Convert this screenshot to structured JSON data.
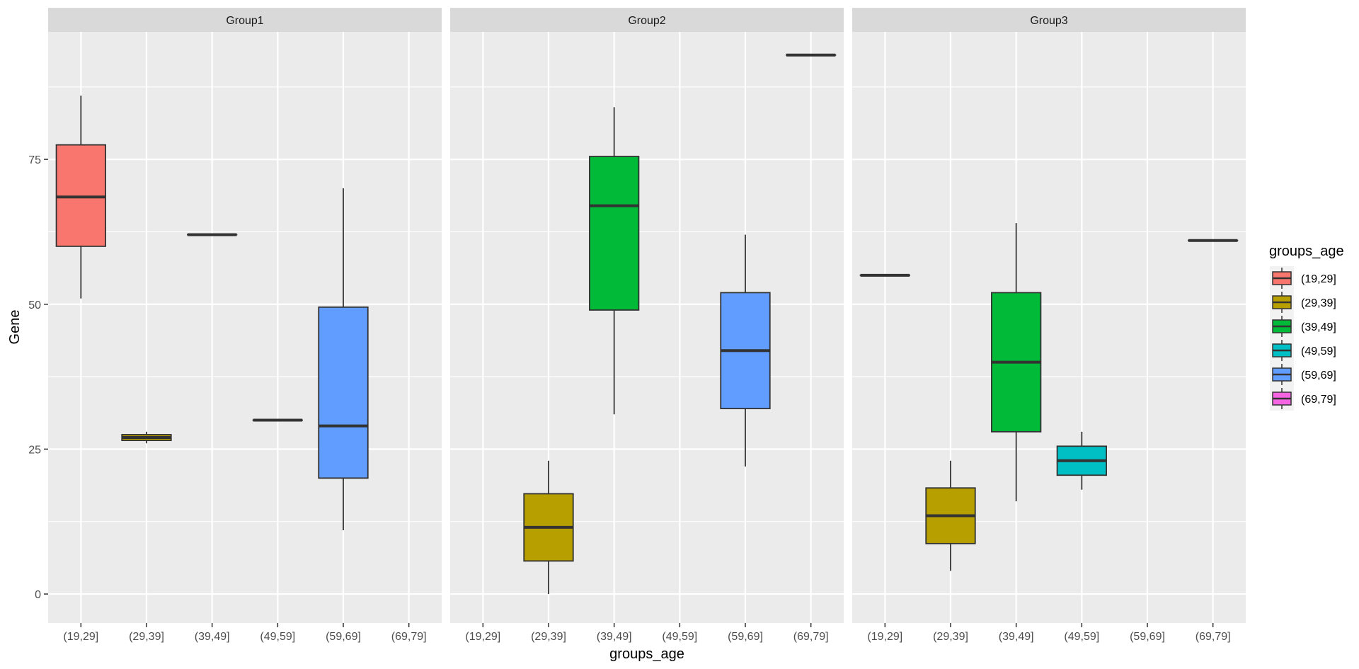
{
  "chart_data": {
    "type": "boxplot",
    "facets": [
      "Group1",
      "Group2",
      "Group3"
    ],
    "categories": [
      "(19,29]",
      "(29,39]",
      "(39,49]",
      "(49,59]",
      "(59,69]",
      "(69,79]"
    ],
    "xlabel": "groups_age",
    "ylabel": "Gene",
    "ylim": [
      -5,
      97
    ],
    "yticks": [
      0,
      25,
      50,
      75
    ],
    "legend": {
      "title": "groups_age",
      "position": "right",
      "entries": [
        {
          "label": "(19,29]",
          "color": "#F8766D"
        },
        {
          "label": "(29,39]",
          "color": "#B79F00"
        },
        {
          "label": "(39,49]",
          "color": "#00BA38"
        },
        {
          "label": "(49,59]",
          "color": "#00BFC4"
        },
        {
          "label": "(59,69]",
          "color": "#619CFF"
        },
        {
          "label": "(69,79]",
          "color": "#F564E3"
        }
      ]
    },
    "boxes": [
      {
        "facet": "Group1",
        "category": "(19,29]",
        "min": 51,
        "q1": 60,
        "median": 68.5,
        "q3": 77.5,
        "max": 86
      },
      {
        "facet": "Group1",
        "category": "(29,39]",
        "min": 26,
        "q1": 26.5,
        "median": 27,
        "q3": 27.5,
        "max": 28
      },
      {
        "facet": "Group1",
        "category": "(39,49]",
        "min": 62,
        "q1": 62,
        "median": 62,
        "q3": 62,
        "max": 62
      },
      {
        "facet": "Group1",
        "category": "(49,59]",
        "min": 30,
        "q1": 30,
        "median": 30,
        "q3": 30,
        "max": 30
      },
      {
        "facet": "Group1",
        "category": "(59,69]",
        "min": 11,
        "q1": 20,
        "median": 29,
        "q3": 49.5,
        "max": 70
      },
      {
        "facet": "Group2",
        "category": "(29,39]",
        "min": 0,
        "q1": 5.7,
        "median": 11.5,
        "q3": 17.3,
        "max": 23
      },
      {
        "facet": "Group2",
        "category": "(39,49]",
        "min": 31,
        "q1": 49,
        "median": 67,
        "q3": 75.5,
        "max": 84
      },
      {
        "facet": "Group2",
        "category": "(59,69]",
        "min": 22,
        "q1": 32,
        "median": 42,
        "q3": 52,
        "max": 62
      },
      {
        "facet": "Group2",
        "category": "(69,79]",
        "min": 93,
        "q1": 93,
        "median": 93,
        "q3": 93,
        "max": 93
      },
      {
        "facet": "Group3",
        "category": "(19,29]",
        "min": 55,
        "q1": 55,
        "median": 55,
        "q3": 55,
        "max": 55
      },
      {
        "facet": "Group3",
        "category": "(29,39]",
        "min": 4,
        "q1": 8.7,
        "median": 13.5,
        "q3": 18.3,
        "max": 23
      },
      {
        "facet": "Group3",
        "category": "(39,49]",
        "min": 16,
        "q1": 28,
        "median": 40,
        "q3": 52,
        "max": 64
      },
      {
        "facet": "Group3",
        "category": "(49,59]",
        "min": 18,
        "q1": 20.5,
        "median": 23,
        "q3": 25.5,
        "max": 28
      },
      {
        "facet": "Group3",
        "category": "(69,79]",
        "min": 61,
        "q1": 61,
        "median": 61,
        "q3": 61,
        "max": 61
      }
    ]
  }
}
